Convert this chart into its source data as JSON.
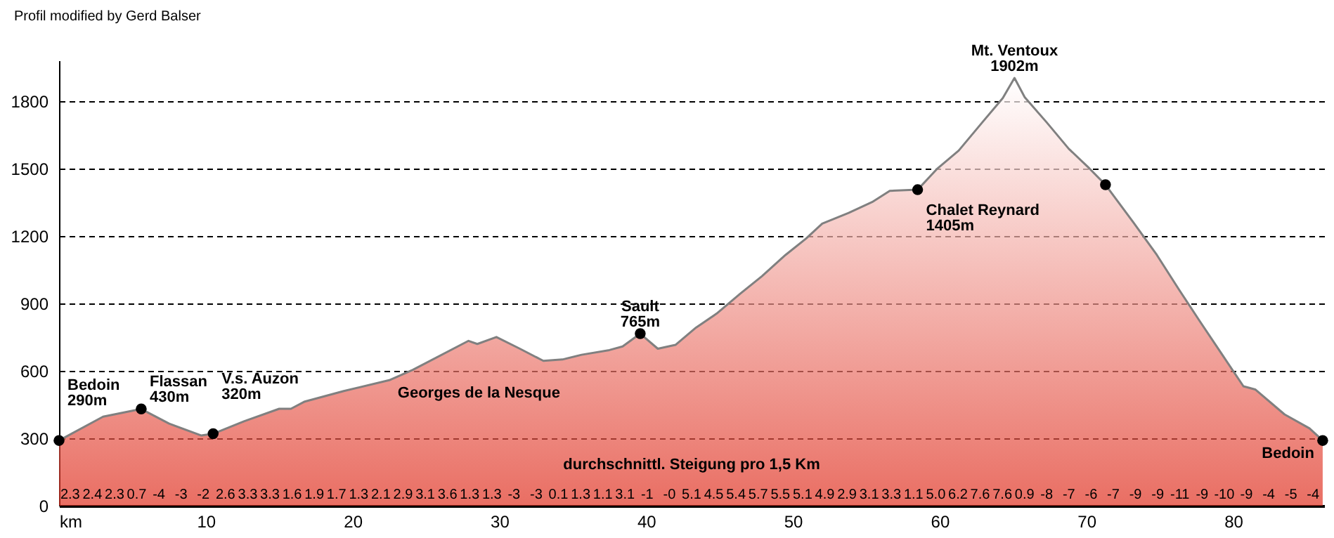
{
  "chart_data": {
    "type": "area",
    "title": "Profil modified by Gerd Balser",
    "xlim": [
      0,
      86.2
    ],
    "xticks": [
      {
        "value": 0,
        "label": "km"
      },
      10,
      20,
      30,
      40,
      50,
      60,
      70,
      80
    ],
    "ylim": [
      0,
      1980
    ],
    "yticks": [
      0,
      300,
      600,
      900,
      1200,
      1500,
      1800
    ],
    "grid": "y",
    "series": [
      {
        "color": "#e03020",
        "x": [
          0,
          3.0,
          5.6,
          7.5,
          9.7,
          10.5,
          12.6,
          15.0,
          15.8,
          16.7,
          19.4,
          22.5,
          24.1,
          27.9,
          28.5,
          29.8,
          31.4,
          33.0,
          34.3,
          35.6,
          37.5,
          38.4,
          39.6,
          40.8,
          42.0,
          43.4,
          44.8,
          46.4,
          47.9,
          49.5,
          50.9,
          52.0,
          53.8,
          55.4,
          56.6,
          58.5,
          59.8,
          61.3,
          62.9,
          64.3,
          65.1,
          65.8,
          67.3,
          68.8,
          70.2,
          71.3,
          73.2,
          74.8,
          76.3,
          77.7,
          79.3,
          80.7,
          81.5,
          83.5,
          85.2,
          86.1
        ],
        "values": [
          290,
          396,
          430,
          365,
          312,
          320,
          375,
          431,
          431,
          462,
          510,
          558,
          604,
          733,
          719,
          750,
          698,
          644,
          650,
          671,
          692,
          708,
          765,
          698,
          715,
          792,
          854,
          942,
          1021,
          1115,
          1188,
          1254,
          1302,
          1350,
          1400,
          1405,
          1496,
          1579,
          1704,
          1812,
          1902,
          1816,
          1704,
          1587,
          1500,
          1427,
          1260,
          1115,
          962,
          823,
          667,
          531,
          517,
          406,
          344,
          290
        ]
      },
      {
        "type": "scatter",
        "color": "#000000",
        "marker": "circle",
        "x": [
          0,
          5.6,
          10.5,
          39.6,
          58.5,
          71.3,
          86.1
        ],
        "values": [
          290,
          430,
          320,
          765,
          1405,
          1427,
          290
        ]
      }
    ],
    "annotations": [
      {
        "text": "Bedoin\n290m",
        "x": 0,
        "y": 290
      },
      {
        "text": "Flassan\n430m",
        "x": 5.6,
        "y": 430
      },
      {
        "text": "V.s. Auzon\n320m",
        "x": 10.5,
        "y": 320
      },
      {
        "text": "Georges de la Nesque",
        "x": 22.5,
        "y": 558
      },
      {
        "text": "Sault\n765m",
        "x": 39.6,
        "y": 765
      },
      {
        "text": "Mt. Ventoux\n1902m",
        "x": 65.1,
        "y": 1902
      },
      {
        "text": "Chalet Reynard\n1405m",
        "x": 58.5,
        "y": 1405
      },
      {
        "text": "Bedoin",
        "x": 86.1,
        "y": 290
      },
      "durchschnittl. Steigung pro 1,5 Km",
      "2.3",
      "2.4",
      "2.3",
      "0.7",
      "-4",
      "-3",
      "-2",
      "2.6",
      "3.3",
      "3.3",
      "1.6",
      "1.9",
      "1.7",
      "1.3",
      "2.1",
      "2.9",
      "3.1",
      "3.6",
      "1.3",
      "1.3",
      "-3",
      "-3",
      "0.1",
      "1.3",
      "1.1",
      "3.1",
      "-1",
      "-0",
      "5.1",
      "4.5",
      "5.4",
      "5.7",
      "5.5",
      "5.1",
      "4.9",
      "2.9",
      "3.1",
      "3.3",
      "1.1",
      "5.0",
      "6.2",
      "7.6",
      "7.6",
      "0.9",
      "-8",
      "-7",
      "-6",
      "-7",
      "-9",
      "-9",
      "-11",
      "-9",
      "-10",
      "-9",
      "-4",
      "-5",
      "-4"
    ]
  }
}
